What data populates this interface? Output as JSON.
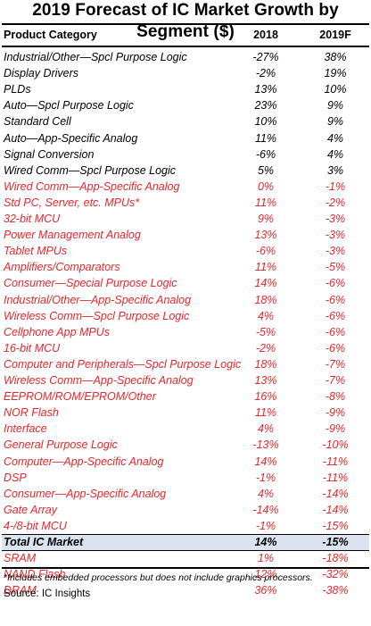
{
  "chart_data": {
    "type": "table",
    "title": "2019 Forecast of IC Market Growth by Segment ($)",
    "columns": [
      "Product Category",
      "2018",
      "2019F"
    ],
    "colors": {
      "positive_row": "#000000",
      "negative_row": "#e8262a",
      "total_band": "#dbe3f1"
    },
    "rows": [
      {
        "category": "Industrial/Other—Spcl Purpose Logic",
        "y2018": "-27%",
        "y2019": "38%",
        "style": "black"
      },
      {
        "category": "Display Drivers",
        "y2018": "-2%",
        "y2019": "19%",
        "style": "black"
      },
      {
        "category": "PLDs",
        "y2018": "13%",
        "y2019": "10%",
        "style": "black"
      },
      {
        "category": "Auto—Spcl Purpose Logic",
        "y2018": "23%",
        "y2019": "9%",
        "style": "black"
      },
      {
        "category": "Standard Cell",
        "y2018": "10%",
        "y2019": "9%",
        "style": "black"
      },
      {
        "category": "Auto—App-Specific Analog",
        "y2018": "11%",
        "y2019": "4%",
        "style": "black"
      },
      {
        "category": "Signal Conversion",
        "y2018": "-6%",
        "y2019": "4%",
        "style": "black"
      },
      {
        "category": "Wired Comm—Spcl Purpose Logic",
        "y2018": "5%",
        "y2019": "3%",
        "style": "black"
      },
      {
        "category": "Wired Comm—App-Specific Analog",
        "y2018": "0%",
        "y2019": "-1%",
        "style": "red"
      },
      {
        "category": "Std PC, Server, etc. MPUs*",
        "y2018": "11%",
        "y2019": "-2%",
        "style": "red"
      },
      {
        "category": "32-bit MCU",
        "y2018": "9%",
        "y2019": "-3%",
        "style": "red"
      },
      {
        "category": "Power Management Analog",
        "y2018": "13%",
        "y2019": "-3%",
        "style": "red"
      },
      {
        "category": "Tablet MPUs",
        "y2018": "-6%",
        "y2019": "-3%",
        "style": "red"
      },
      {
        "category": "Amplifiers/Comparators",
        "y2018": "11%",
        "y2019": "-5%",
        "style": "red"
      },
      {
        "category": "Consumer—Special Purpose Logic",
        "y2018": "14%",
        "y2019": "-6%",
        "style": "red"
      },
      {
        "category": "Industrial/Other—App-Specific Analog",
        "y2018": "18%",
        "y2019": "-6%",
        "style": "red"
      },
      {
        "category": "Wireless Comm—Spcl Purpose Logic",
        "y2018": "4%",
        "y2019": "-6%",
        "style": "red"
      },
      {
        "category": "Cellphone App MPUs",
        "y2018": "-5%",
        "y2019": "-6%",
        "style": "red"
      },
      {
        "category": "16-bit MCU",
        "y2018": "-2%",
        "y2019": "-6%",
        "style": "red"
      },
      {
        "category": "Computer and Peripherals—Spcl Purpose Logic",
        "y2018": "18%",
        "y2019": "-7%",
        "style": "red"
      },
      {
        "category": "Wireless Comm—App-Specific Analog",
        "y2018": "13%",
        "y2019": "-7%",
        "style": "red"
      },
      {
        "category": "EEPROM/ROM/EPROM/Other",
        "y2018": "16%",
        "y2019": "-8%",
        "style": "red"
      },
      {
        "category": "NOR Flash",
        "y2018": "11%",
        "y2019": "-9%",
        "style": "red"
      },
      {
        "category": "Interface",
        "y2018": "4%",
        "y2019": "-9%",
        "style": "red"
      },
      {
        "category": "General Purpose Logic",
        "y2018": "-13%",
        "y2019": "-10%",
        "style": "red"
      },
      {
        "category": "Computer—App-Specific Analog",
        "y2018": "14%",
        "y2019": "-11%",
        "style": "red"
      },
      {
        "category": "DSP",
        "y2018": "-1%",
        "y2019": "-11%",
        "style": "red"
      },
      {
        "category": "Consumer—App-Specific Analog",
        "y2018": "4%",
        "y2019": "-14%",
        "style": "red"
      },
      {
        "category": "Gate Array",
        "y2018": "-14%",
        "y2019": "-14%",
        "style": "red"
      },
      {
        "category": "4-/8-bit MCU",
        "y2018": "-1%",
        "y2019": "-15%",
        "style": "red"
      },
      {
        "category": "Total IC Market",
        "y2018": "14%",
        "y2019": "-15%",
        "style": "total"
      },
      {
        "category": "SRAM",
        "y2018": "1%",
        "y2019": "-18%",
        "style": "red"
      },
      {
        "category": "NAND Flash",
        "y2018": "12%",
        "y2019": "-32%",
        "style": "red"
      },
      {
        "category": "DRAM",
        "y2018": "36%",
        "y2019": "-38%",
        "style": "red"
      }
    ],
    "footnote": "*Includes embedded processors but does not include graphics processors.",
    "source": "Source:  IC Insights"
  }
}
